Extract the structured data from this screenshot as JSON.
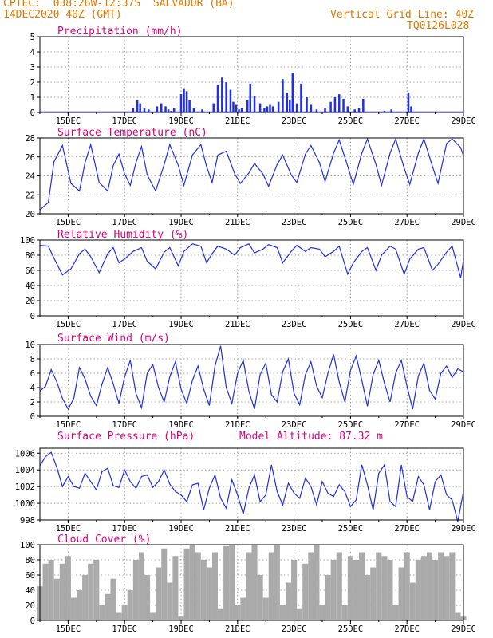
{
  "header": {
    "line1_left": "CPTEC:  038:26W-12:37S  SALVADOR (BA)",
    "line2_left": "14DEC2020 40Z (GMT)",
    "line2_right": "Vertical Grid Line: 40Z",
    "line3_right": "TQ0126L028"
  },
  "x_axis": {
    "day_labels": [
      "15DEC",
      "17DEC",
      "19DEC",
      "21DEC",
      "23DEC",
      "25DEC",
      "27DEC",
      "29DEC"
    ],
    "day_positions": [
      15,
      17,
      19,
      21,
      23,
      25,
      27,
      29
    ],
    "xlim": [
      14.0,
      29.0
    ]
  },
  "colors": {
    "line": "#1f2fe6",
    "cloud": "#aaaaaa",
    "title": "#e0007a",
    "header": "#e07800"
  },
  "chart_data": [
    {
      "type": "bar",
      "name": "precip",
      "title": "Precipitation (mm/h)",
      "ylim": [
        0,
        5
      ],
      "yticks": [
        0,
        1,
        2,
        3,
        4,
        5
      ],
      "x": [
        17.3,
        17.45,
        17.55,
        17.7,
        17.85,
        18.15,
        18.3,
        18.45,
        18.55,
        18.65,
        18.75,
        19.0,
        19.1,
        19.2,
        19.3,
        19.45,
        19.75,
        20.15,
        20.3,
        20.45,
        20.6,
        20.75,
        20.85,
        20.95,
        21.05,
        21.15,
        21.35,
        21.45,
        21.6,
        21.8,
        21.95,
        22.05,
        22.15,
        22.25,
        22.45,
        22.6,
        22.75,
        22.85,
        22.95,
        23.1,
        23.25,
        23.45,
        23.6,
        23.8,
        24.1,
        24.3,
        24.45,
        24.6,
        24.75,
        24.9,
        25.15,
        25.3,
        25.45,
        26.2,
        26.45,
        27.05,
        27.15
      ],
      "values": [
        0.3,
        0.8,
        0.6,
        0.3,
        0.2,
        0.4,
        0.6,
        0.4,
        0.2,
        0.1,
        0.3,
        1.2,
        1.6,
        1.4,
        0.8,
        0.3,
        0.2,
        0.6,
        1.8,
        2.3,
        2.0,
        1.5,
        0.7,
        0.5,
        0.2,
        0.3,
        0.8,
        1.9,
        1.1,
        0.6,
        0.3,
        0.4,
        0.5,
        0.4,
        0.7,
        2.2,
        1.3,
        0.8,
        2.6,
        0.6,
        1.9,
        1.0,
        0.5,
        0.2,
        0.3,
        0.7,
        1.0,
        1.2,
        0.9,
        0.4,
        0.2,
        0.3,
        0.9,
        0.1,
        0.2,
        1.3,
        0.4
      ]
    },
    {
      "type": "line",
      "name": "temperature",
      "title": "Surface Temperature (nC)",
      "ylim": [
        20,
        28
      ],
      "yticks": [
        20,
        22,
        24,
        26,
        28
      ],
      "x": [
        14.0,
        14.3,
        14.5,
        14.8,
        15.1,
        15.4,
        15.6,
        15.8,
        16.1,
        16.4,
        16.6,
        16.8,
        17.0,
        17.2,
        17.4,
        17.6,
        17.8,
        18.1,
        18.4,
        18.6,
        18.9,
        19.1,
        19.4,
        19.7,
        19.9,
        20.1,
        20.3,
        20.6,
        20.9,
        21.1,
        21.4,
        21.6,
        21.9,
        22.1,
        22.4,
        22.6,
        22.9,
        23.1,
        23.4,
        23.6,
        23.9,
        24.1,
        24.4,
        24.6,
        24.9,
        25.1,
        25.4,
        25.6,
        25.9,
        26.1,
        26.4,
        26.6,
        26.9,
        27.1,
        27.4,
        27.6,
        27.9,
        28.1,
        28.4,
        28.6,
        28.9,
        29.0
      ],
      "values": [
        20.4,
        21.2,
        25.5,
        27.2,
        23.2,
        22.4,
        25.4,
        27.3,
        23.3,
        22.4,
        25.1,
        26.3,
        24.2,
        23.0,
        25.4,
        27.1,
        24.1,
        22.4,
        25.2,
        27.3,
        25.1,
        23.0,
        26.2,
        27.3,
        25.0,
        23.3,
        26.2,
        26.6,
        24.2,
        23.2,
        24.3,
        25.3,
        24.2,
        22.9,
        25.2,
        26.2,
        24.1,
        23.3,
        26.3,
        27.2,
        25.4,
        23.4,
        26.4,
        27.8,
        25.0,
        23.1,
        26.4,
        27.9,
        25.2,
        23.0,
        26.4,
        27.9,
        24.8,
        23.1,
        26.4,
        27.9,
        25.0,
        23.2,
        27.4,
        27.9,
        27.0,
        26.1
      ]
    },
    {
      "type": "line",
      "name": "humidity",
      "title": "Relative Humidity (%)",
      "ylim": [
        0,
        100
      ],
      "yticks": [
        0,
        20,
        40,
        60,
        80,
        100
      ],
      "x": [
        14.0,
        14.3,
        14.5,
        14.8,
        15.1,
        15.4,
        15.6,
        15.8,
        16.1,
        16.4,
        16.6,
        16.8,
        17.0,
        17.3,
        17.6,
        17.8,
        18.1,
        18.4,
        18.6,
        18.9,
        19.1,
        19.4,
        19.7,
        19.9,
        20.1,
        20.3,
        20.6,
        20.9,
        21.1,
        21.4,
        21.6,
        21.9,
        22.1,
        22.4,
        22.6,
        22.9,
        23.1,
        23.4,
        23.6,
        23.9,
        24.1,
        24.4,
        24.6,
        24.9,
        25.1,
        25.4,
        25.6,
        25.9,
        26.1,
        26.4,
        26.6,
        26.9,
        27.1,
        27.4,
        27.6,
        27.9,
        28.1,
        28.4,
        28.6,
        28.9,
        29.0
      ],
      "values": [
        93,
        92,
        76,
        54,
        62,
        82,
        88,
        78,
        57,
        82,
        90,
        70,
        75,
        85,
        90,
        72,
        62,
        84,
        90,
        66,
        85,
        95,
        92,
        70,
        82,
        92,
        88,
        80,
        90,
        95,
        83,
        88,
        94,
        90,
        70,
        85,
        93,
        85,
        90,
        88,
        78,
        85,
        92,
        55,
        70,
        85,
        90,
        60,
        80,
        92,
        88,
        55,
        75,
        88,
        90,
        60,
        68,
        84,
        92,
        50,
        74
      ]
    },
    {
      "type": "line",
      "name": "wind",
      "title": "Surface Wind (m/s)",
      "ylim": [
        0,
        10
      ],
      "yticks": [
        0,
        2,
        4,
        6,
        8,
        10
      ],
      "x": [
        14.0,
        14.2,
        14.4,
        14.6,
        14.8,
        15.0,
        15.2,
        15.4,
        15.6,
        15.8,
        16.0,
        16.2,
        16.4,
        16.6,
        16.8,
        17.0,
        17.2,
        17.4,
        17.6,
        17.8,
        18.0,
        18.2,
        18.4,
        18.6,
        18.8,
        19.0,
        19.2,
        19.4,
        19.6,
        19.8,
        20.0,
        20.2,
        20.4,
        20.6,
        20.8,
        21.0,
        21.2,
        21.4,
        21.6,
        21.8,
        22.0,
        22.2,
        22.4,
        22.6,
        22.8,
        23.0,
        23.2,
        23.4,
        23.6,
        23.8,
        24.0,
        24.2,
        24.4,
        24.6,
        24.8,
        25.0,
        25.2,
        25.4,
        25.6,
        25.8,
        26.0,
        26.2,
        26.4,
        26.6,
        26.8,
        27.0,
        27.2,
        27.4,
        27.6,
        27.8,
        28.0,
        28.2,
        28.4,
        28.6,
        28.8,
        29.0
      ],
      "values": [
        3.5,
        4.2,
        6.5,
        4.8,
        2.5,
        1.0,
        2.5,
        6.8,
        5.2,
        2.8,
        1.5,
        4.5,
        6.8,
        4.5,
        1.8,
        5.5,
        7.8,
        3.2,
        1.2,
        6.0,
        7.2,
        4.0,
        2.0,
        5.5,
        7.6,
        3.8,
        1.8,
        5.0,
        7.0,
        3.8,
        1.5,
        7.0,
        9.8,
        4.0,
        1.8,
        6.0,
        7.8,
        3.5,
        1.0,
        5.8,
        7.4,
        3.0,
        2.0,
        6.2,
        8.0,
        3.2,
        1.6,
        5.8,
        7.6,
        4.2,
        2.6,
        6.0,
        8.6,
        4.8,
        2.0,
        6.4,
        8.4,
        5.0,
        1.4,
        5.8,
        7.8,
        4.6,
        2.0,
        6.0,
        7.8,
        4.2,
        1.0,
        5.6,
        7.4,
        3.6,
        2.4,
        6.0,
        7.0,
        5.4,
        6.6,
        6.2
      ]
    },
    {
      "type": "line",
      "name": "pressure",
      "title": "Surface Pressure (hPa)",
      "annotation": "Model Altitude: 87.32 m",
      "ylim": [
        998,
        1006.6
      ],
      "yticks": [
        998,
        1000,
        1002,
        1004,
        1006
      ],
      "x": [
        14.0,
        14.2,
        14.4,
        14.6,
        14.8,
        15.0,
        15.2,
        15.4,
        15.6,
        15.8,
        16.0,
        16.2,
        16.4,
        16.6,
        16.8,
        17.0,
        17.2,
        17.4,
        17.6,
        17.8,
        18.0,
        18.2,
        18.4,
        18.6,
        18.8,
        19.0,
        19.2,
        19.4,
        19.6,
        19.8,
        20.0,
        20.2,
        20.4,
        20.6,
        20.8,
        21.0,
        21.2,
        21.4,
        21.6,
        21.8,
        22.0,
        22.2,
        22.4,
        22.6,
        22.8,
        23.0,
        23.2,
        23.4,
        23.6,
        23.8,
        24.0,
        24.2,
        24.4,
        24.6,
        24.8,
        25.0,
        25.2,
        25.4,
        25.6,
        25.8,
        26.0,
        26.2,
        26.4,
        26.6,
        26.8,
        27.0,
        27.2,
        27.4,
        27.6,
        27.8,
        28.0,
        28.2,
        28.4,
        28.6,
        28.8,
        29.0
      ],
      "values": [
        1004.5,
        1005.6,
        1006.1,
        1004.3,
        1002.0,
        1003.2,
        1002.0,
        1001.8,
        1003.6,
        1002.6,
        1001.6,
        1003.8,
        1004.2,
        1002.1,
        1001.9,
        1004.0,
        1002.6,
        1001.8,
        1003.2,
        1003.4,
        1001.9,
        1002.6,
        1004.0,
        1002.3,
        1001.4,
        1001.0,
        1000.2,
        1002.2,
        1002.4,
        999.2,
        1001.8,
        1003.4,
        1000.6,
        999.4,
        1002.8,
        1001.0,
        998.7,
        1001.8,
        1003.4,
        1000.2,
        1001.0,
        1004.6,
        1001.4,
        999.8,
        1002.4,
        1001.2,
        1000.6,
        1003.0,
        1002.0,
        999.8,
        1002.6,
        1001.2,
        1000.8,
        1002.2,
        1001.4,
        999.6,
        1000.4,
        1004.6,
        1002.2,
        999.2,
        1003.6,
        1004.6,
        1000.2,
        999.6,
        1004.6,
        1000.8,
        1000.2,
        1003.2,
        1002.2,
        999.2,
        1002.6,
        1003.4,
        1001.0,
        1000.4,
        997.8,
        1001.4
      ]
    },
    {
      "type": "bar",
      "name": "cloud",
      "title": "Cloud Cover (%)",
      "ylim": [
        0,
        100
      ],
      "yticks": [
        0,
        20,
        40,
        60,
        80,
        100
      ],
      "x": [
        14.0,
        14.2,
        14.4,
        14.6,
        14.8,
        15.0,
        15.2,
        15.4,
        15.6,
        15.8,
        16.0,
        16.2,
        16.4,
        16.6,
        16.8,
        17.0,
        17.2,
        17.4,
        17.6,
        17.8,
        18.0,
        18.2,
        18.4,
        18.6,
        18.8,
        19.0,
        19.2,
        19.4,
        19.6,
        19.8,
        20.0,
        20.2,
        20.4,
        20.6,
        20.8,
        21.0,
        21.2,
        21.4,
        21.6,
        21.8,
        22.0,
        22.2,
        22.4,
        22.6,
        22.8,
        23.0,
        23.2,
        23.4,
        23.6,
        23.8,
        24.0,
        24.2,
        24.4,
        24.6,
        24.8,
        25.0,
        25.2,
        25.4,
        25.6,
        25.8,
        26.0,
        26.2,
        26.4,
        26.6,
        26.8,
        27.0,
        27.2,
        27.4,
        27.6,
        27.8,
        28.0,
        28.2,
        28.4,
        28.6,
        28.8,
        29.0
      ],
      "values": [
        45,
        75,
        80,
        55,
        75,
        85,
        30,
        40,
        60,
        75,
        80,
        20,
        35,
        55,
        10,
        20,
        40,
        80,
        90,
        60,
        10,
        70,
        95,
        50,
        85,
        5,
        95,
        100,
        90,
        80,
        70,
        90,
        15,
        98,
        100,
        20,
        30,
        90,
        100,
        60,
        30,
        90,
        100,
        20,
        50,
        80,
        15,
        75,
        90,
        100,
        20,
        60,
        80,
        90,
        20,
        85,
        80,
        90,
        60,
        70,
        90,
        85,
        80,
        20,
        70,
        90,
        50,
        80,
        85,
        90,
        80,
        90,
        85,
        90,
        10,
        5
      ]
    }
  ]
}
